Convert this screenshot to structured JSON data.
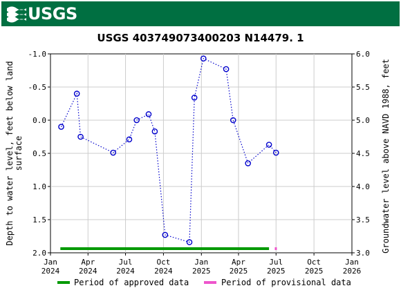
{
  "header": {
    "logo_text": "USGS",
    "logo_icon": "usgs-wave-icon"
  },
  "chart_data": {
    "type": "scatter",
    "title": "USGS 403749073400203 N14479. 1",
    "ylabel_left_line1": "Depth to water level, feet below land",
    "ylabel_left_line2": "surface",
    "ylabel_right": "Groundwater level above NAVD 1988, feet",
    "xlim": [
      "2024-01-01",
      "2026-01-01"
    ],
    "ylim_left": [
      2.0,
      -1.0
    ],
    "ylim_right": [
      3.0,
      6.0
    ],
    "left_ticks": [
      -1.0,
      -0.5,
      0.0,
      0.5,
      1.0,
      1.5,
      2.0
    ],
    "right_ticks": [
      3.0,
      3.5,
      4.0,
      4.5,
      5.0,
      5.5,
      6.0
    ],
    "x_ticks": [
      {
        "date": "2024-01-01",
        "label": "Jan",
        "year": "2024"
      },
      {
        "date": "2024-04-01",
        "label": "Apr",
        "year": "2024"
      },
      {
        "date": "2024-07-01",
        "label": "Jul",
        "year": "2024"
      },
      {
        "date": "2024-10-01",
        "label": "Oct",
        "year": "2024"
      },
      {
        "date": "2025-01-01",
        "label": "Jan",
        "year": "2025"
      },
      {
        "date": "2025-04-01",
        "label": "Apr",
        "year": "2025"
      },
      {
        "date": "2025-07-01",
        "label": "Jul",
        "year": "2025"
      },
      {
        "date": "2025-10-01",
        "label": "Oct",
        "year": "2025"
      },
      {
        "date": "2026-01-01",
        "label": "Jan",
        "year": "2026"
      }
    ],
    "grid": true,
    "series_color": "#0000cc",
    "points": [
      {
        "date": "2024-01-27",
        "depth": 0.1
      },
      {
        "date": "2024-03-05",
        "depth": -0.4
      },
      {
        "date": "2024-03-14",
        "depth": 0.25
      },
      {
        "date": "2024-06-01",
        "depth": 0.49
      },
      {
        "date": "2024-07-10",
        "depth": 0.29
      },
      {
        "date": "2024-07-28",
        "depth": 0.0
      },
      {
        "date": "2024-08-26",
        "depth": -0.09
      },
      {
        "date": "2024-09-10",
        "depth": 0.17
      },
      {
        "date": "2024-10-05",
        "depth": 1.73
      },
      {
        "date": "2024-12-03",
        "depth": 1.84
      },
      {
        "date": "2024-12-15",
        "depth": -0.34
      },
      {
        "date": "2025-01-06",
        "depth": -0.93
      },
      {
        "date": "2025-03-02",
        "depth": -0.77
      },
      {
        "date": "2025-03-19",
        "depth": 0.0
      },
      {
        "date": "2025-04-24",
        "depth": 0.65
      },
      {
        "date": "2025-06-14",
        "depth": 0.37
      },
      {
        "date": "2025-07-01",
        "depth": 0.49
      }
    ],
    "periods": [
      {
        "start": "2024-01-25",
        "end": "2025-06-14",
        "color": "#009900",
        "kind": "approved"
      },
      {
        "start": "2025-06-28",
        "end": "2025-07-03",
        "color": "#ee55cc",
        "kind": "provisional"
      }
    ],
    "legend": [
      {
        "label": "Period of approved data",
        "color": "#009900"
      },
      {
        "label": "Period of provisional data",
        "color": "#ee55cc"
      }
    ],
    "legend_placement": "bottom"
  }
}
